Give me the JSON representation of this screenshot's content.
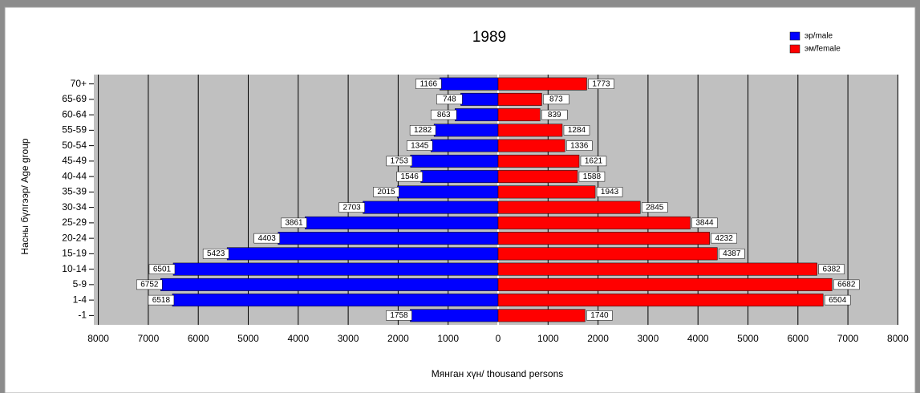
{
  "chart_data": {
    "type": "population-pyramid",
    "title": "1989",
    "x_label": "Мянган хүн/ thousand persons",
    "y_label": "Насны бүлгээр/ Age group",
    "categories": [
      "70+",
      "65-69",
      "60-64",
      "55-59",
      "50-54",
      "45-49",
      "40-44",
      "35-39",
      "30-34",
      "25-29",
      "20-24",
      "15-19",
      "10-14",
      "5-9",
      "1-4",
      "-1"
    ],
    "series": [
      {
        "name": "эр/male",
        "color": "#0000ff",
        "values": [
          -1166,
          -748,
          -863,
          -1282,
          -1345,
          -1753,
          -1546,
          -2015,
          -2703,
          -3861,
          -4403,
          -5423,
          -6501,
          -6752,
          -6518,
          -1758
        ],
        "value_labels": [
          "1166",
          "748",
          "863",
          "1282",
          "1345",
          "1753",
          "1546",
          "2015",
          "2703",
          "3861",
          "4403",
          "5423",
          "6501",
          "6752",
          "6518",
          "1758"
        ]
      },
      {
        "name": "эм/female",
        "color": "#ff0000",
        "values": [
          1773,
          873,
          839,
          1284,
          1336,
          1621,
          1588,
          1943,
          2845,
          3844,
          4232,
          4387,
          6382,
          6682,
          6504,
          1740
        ]
      }
    ],
    "xlim": [
      -8000,
      8000
    ],
    "xticks": [
      {
        "value": -8000,
        "label": "8000"
      },
      {
        "value": -7000,
        "label": "7000"
      },
      {
        "value": -6000,
        "label": "6000"
      },
      {
        "value": -5000,
        "label": "5000"
      },
      {
        "value": -4000,
        "label": "4000"
      },
      {
        "value": -3000,
        "label": "3000"
      },
      {
        "value": -2000,
        "label": "2000"
      },
      {
        "value": -1000,
        "label": "1000"
      },
      0,
      1000,
      2000,
      3000,
      4000,
      5000,
      6000,
      7000,
      8000
    ],
    "grid": true,
    "legend": "upper right"
  }
}
